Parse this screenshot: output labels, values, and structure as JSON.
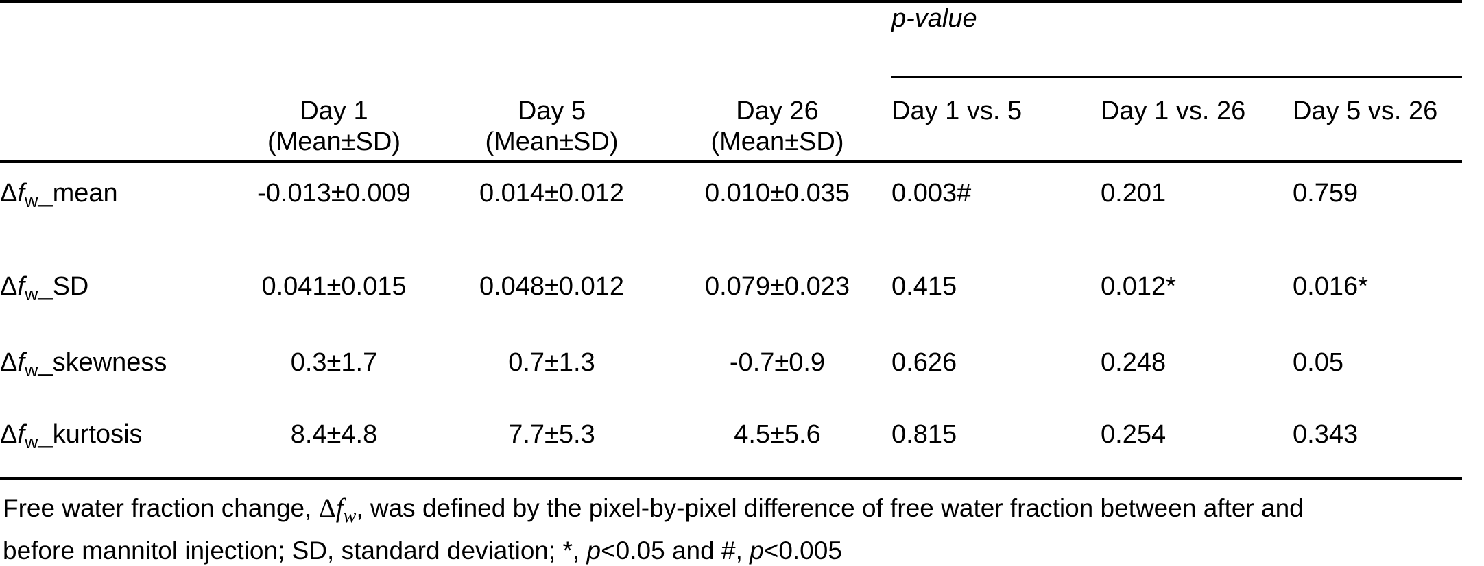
{
  "table": {
    "pvalue_header": "p-value",
    "day_columns": [
      {
        "title": "Day 1",
        "subtitle": "(Mean±SD)"
      },
      {
        "title": "Day 5",
        "subtitle": "(Mean±SD)"
      },
      {
        "title": "Day 26",
        "subtitle": "(Mean±SD)"
      }
    ],
    "comparison_columns": [
      "Day 1 vs. 5",
      "Day 1 vs. 26",
      "Day 5 vs. 26"
    ],
    "rows": [
      {
        "label": {
          "delta": "Δ",
          "f": "f",
          "sub": "w",
          "rest": "_mean"
        },
        "values": [
          "-0.013±0.009",
          "0.014±0.012",
          "0.010±0.035",
          "0.003#",
          "0.201",
          "0.759"
        ]
      },
      {
        "label": {
          "delta": "Δ",
          "f": "f",
          "sub": "w",
          "rest": "_SD"
        },
        "values": [
          "0.041±0.015",
          "0.048±0.012",
          "0.079±0.023",
          "0.415",
          "0.012*",
          "0.016*"
        ]
      },
      {
        "label": {
          "delta": "Δ",
          "f": "f",
          "sub": "w",
          "rest": "_skewness"
        },
        "values": [
          "0.3±1.7",
          "0.7±1.3",
          "-0.7±0.9",
          "0.626",
          "0.248",
          "0.05"
        ]
      },
      {
        "label": {
          "delta": "Δ",
          "f": "f",
          "sub": "w",
          "rest": "_kurtosis"
        },
        "values": [
          "8.4±4.8",
          "7.7±5.3",
          "4.5±5.6",
          "0.815",
          "0.254",
          "0.343"
        ]
      }
    ]
  },
  "footnote": {
    "line1_before": "Free water fraction change, ",
    "math_delta": "Δ",
    "math_f": "f",
    "math_sub": "w",
    "line1_after": ", was defined by the pixel-by-pixel difference of free water fraction between after and",
    "line2_a": "before mannitol injection; SD, standard deviation; *, ",
    "line2_p1": "p",
    "line2_b": "<0.05 and #, ",
    "line2_p2": "p",
    "line2_c": "<0.005"
  }
}
